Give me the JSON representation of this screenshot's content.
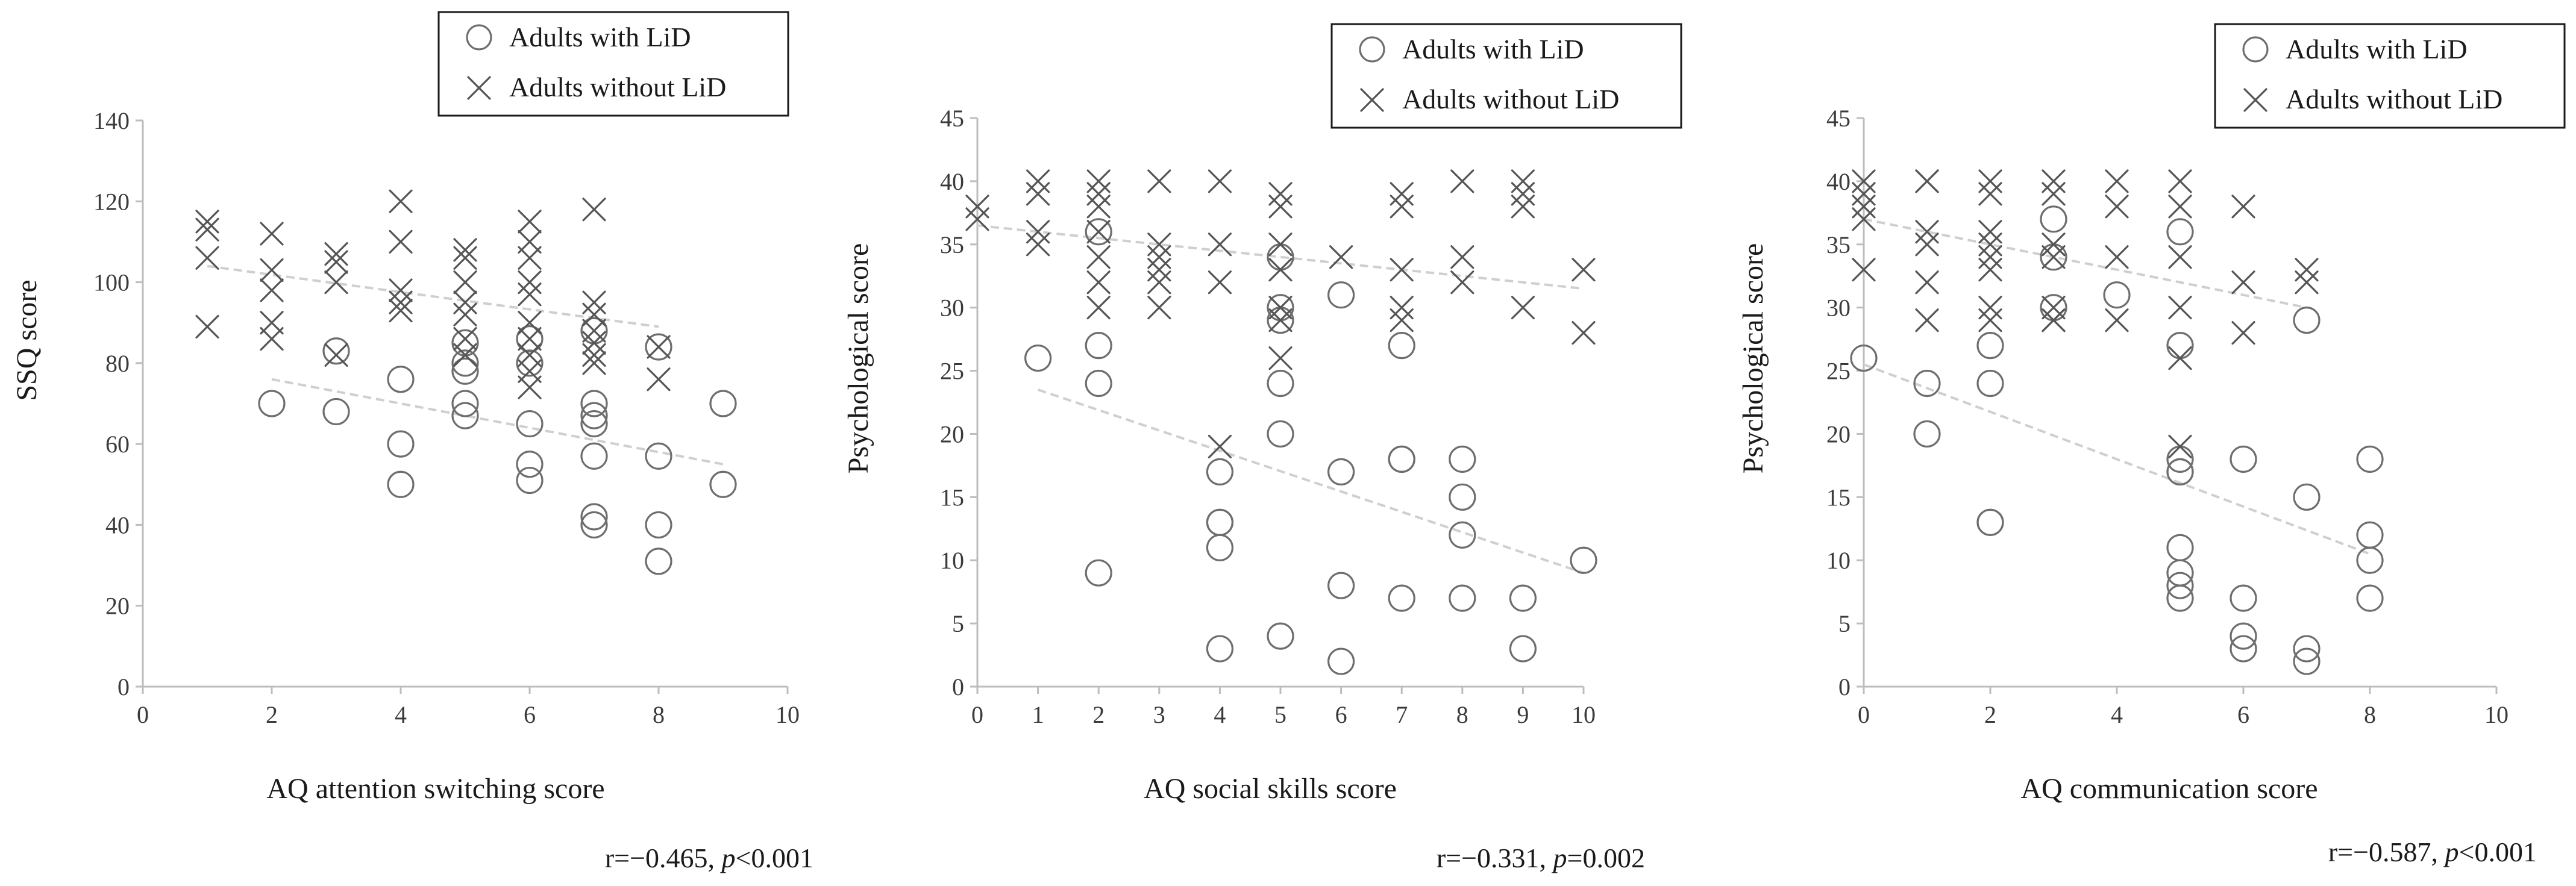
{
  "chart_data": [
    {
      "type": "scatter",
      "title": "",
      "xlabel": "AQ attention switching score",
      "ylabel": "SSQ score",
      "xlim": [
        0,
        10
      ],
      "ylim": [
        0,
        140
      ],
      "xticks": [
        0,
        2,
        4,
        6,
        8,
        10
      ],
      "yticks": [
        0,
        20,
        40,
        60,
        80,
        100,
        120,
        140
      ],
      "grid": false,
      "legend_position": "top-center",
      "correlation": {
        "r_text": "r=−0.465, ",
        "p_symbol": "p",
        "p_text": "<0.001"
      },
      "series": [
        {
          "name": "Adults with LiD",
          "marker": "circle",
          "x": [
            2,
            3,
            3,
            4,
            4,
            4,
            5,
            5,
            5,
            5,
            5,
            6,
            6,
            6,
            6,
            6,
            7,
            7,
            7,
            7,
            7,
            7,
            7,
            8,
            8,
            8,
            8,
            9,
            9
          ],
          "y": [
            70,
            68,
            83,
            76,
            60,
            50,
            67,
            70,
            78,
            80,
            85,
            65,
            55,
            51,
            80,
            86,
            70,
            67,
            65,
            57,
            42,
            40,
            88,
            84,
            57,
            40,
            31,
            70,
            50
          ],
          "trend": {
            "x": [
              2,
              9
            ],
            "y": [
              76,
              55
            ]
          }
        },
        {
          "name": "Adults without LiD",
          "marker": "cross",
          "x": [
            1,
            1,
            1,
            1,
            2,
            2,
            2,
            2,
            2,
            3,
            3,
            3,
            3,
            4,
            4,
            4,
            4,
            4,
            5,
            5,
            5,
            5,
            5,
            5,
            5,
            6,
            6,
            6,
            6,
            6,
            6,
            6,
            6,
            6,
            6,
            7,
            7,
            7,
            7,
            7,
            7,
            7,
            8,
            8
          ],
          "y": [
            115,
            113,
            106,
            89,
            112,
            103,
            98,
            90,
            86,
            107,
            105,
            100,
            82,
            120,
            110,
            98,
            95,
            93,
            108,
            106,
            100,
            95,
            92,
            86,
            82,
            115,
            110,
            106,
            100,
            97,
            90,
            86,
            82,
            78,
            74,
            118,
            95,
            92,
            88,
            85,
            82,
            80,
            84,
            76
          ],
          "trend": {
            "x": [
              1,
              8
            ],
            "y": [
              104,
              89
            ]
          }
        }
      ]
    },
    {
      "type": "scatter",
      "title": "",
      "xlabel": "AQ social skills score",
      "ylabel": "Psychological score",
      "xlim": [
        0,
        10
      ],
      "ylim": [
        0,
        45
      ],
      "xticks": [
        0,
        1,
        2,
        3,
        4,
        5,
        6,
        7,
        8,
        9,
        10
      ],
      "yticks": [
        0,
        5,
        10,
        15,
        20,
        25,
        30,
        35,
        40,
        45
      ],
      "grid": false,
      "legend_position": "top-right",
      "correlation": {
        "r_text": "r=−0.331, ",
        "p_symbol": "p",
        "p_text": "=0.002"
      },
      "series": [
        {
          "name": "Adults with LiD",
          "marker": "circle",
          "x": [
            1,
            2,
            2,
            2,
            2,
            4,
            4,
            4,
            4,
            4,
            5,
            5,
            5,
            5,
            5,
            5,
            6,
            6,
            6,
            6,
            7,
            7,
            7,
            7,
            8,
            8,
            8,
            8,
            9,
            9,
            10
          ],
          "y": [
            26,
            36,
            27,
            24,
            9,
            17,
            13,
            13,
            11,
            3,
            30,
            29,
            24,
            20,
            4,
            34,
            31,
            17,
            8,
            2,
            27,
            18,
            18,
            7,
            18,
            15,
            12,
            7,
            7,
            3,
            10
          ],
          "trend": {
            "x": [
              1,
              10
            ],
            "y": [
              23.5,
              9
            ]
          }
        },
        {
          "name": "Adults without LiD",
          "marker": "cross",
          "x": [
            0,
            0,
            1,
            1,
            1,
            1,
            2,
            2,
            2,
            2,
            2,
            2,
            2,
            3,
            3,
            3,
            3,
            3,
            3,
            4,
            4,
            4,
            4,
            5,
            5,
            5,
            5,
            5,
            5,
            5,
            6,
            7,
            7,
            7,
            7,
            7,
            8,
            8,
            8,
            9,
            9,
            9,
            9,
            10,
            10
          ],
          "y": [
            38,
            37,
            40,
            39,
            36,
            35,
            40,
            39,
            38,
            36,
            34,
            32,
            30,
            40,
            35,
            34,
            33,
            32,
            30,
            40,
            35,
            32,
            19,
            39,
            38,
            35,
            33,
            30,
            29,
            26,
            34,
            39,
            38,
            33,
            30,
            29,
            40,
            34,
            32,
            40,
            39,
            38,
            30,
            33,
            28
          ],
          "trend": {
            "x": [
              0,
              10
            ],
            "y": [
              36.5,
              31.5
            ]
          }
        }
      ]
    },
    {
      "type": "scatter",
      "title": "",
      "xlabel": "AQ communication score",
      "ylabel": "Psychological score",
      "xlim": [
        0,
        10
      ],
      "ylim": [
        0,
        45
      ],
      "xticks": [
        0,
        2,
        4,
        6,
        8,
        10
      ],
      "yticks": [
        0,
        5,
        10,
        15,
        20,
        25,
        30,
        35,
        40,
        45
      ],
      "grid": false,
      "legend_position": "top-right",
      "correlation": {
        "r_text": "r=−0.587, ",
        "p_symbol": "p",
        "p_text": "<0.001"
      },
      "series": [
        {
          "name": "Adults with LiD",
          "marker": "circle",
          "x": [
            0,
            1,
            1,
            2,
            2,
            2,
            2,
            3,
            3,
            3,
            4,
            5,
            5,
            5,
            5,
            5,
            5,
            5,
            5,
            5,
            6,
            6,
            6,
            6,
            7,
            7,
            7,
            7,
            8,
            8,
            8,
            8
          ],
          "y": [
            26,
            24,
            20,
            27,
            24,
            13,
            13,
            37,
            34,
            30,
            31,
            36,
            27,
            18,
            17,
            17,
            11,
            9,
            8,
            7,
            18,
            7,
            4,
            3,
            29,
            15,
            3,
            2,
            18,
            12,
            10,
            7
          ],
          "trend": {
            "x": [
              0,
              8
            ],
            "y": [
              25.5,
              10.5
            ]
          }
        },
        {
          "name": "Adults without LiD",
          "marker": "cross",
          "x": [
            0,
            0,
            0,
            0,
            0,
            1,
            1,
            1,
            1,
            1,
            1,
            2,
            2,
            2,
            2,
            2,
            2,
            2,
            2,
            3,
            3,
            3,
            3,
            3,
            3,
            3,
            4,
            4,
            4,
            4,
            5,
            5,
            5,
            5,
            5,
            5,
            6,
            6,
            6,
            7,
            7
          ],
          "y": [
            40,
            39,
            38,
            37,
            33,
            40,
            40,
            36,
            35,
            32,
            29,
            40,
            39,
            36,
            35,
            34,
            33,
            30,
            29,
            40,
            39,
            35,
            34,
            30,
            29,
            29,
            40,
            38,
            34,
            29,
            40,
            38,
            34,
            30,
            26,
            19,
            38,
            32,
            28,
            33,
            32
          ],
          "trend": {
            "x": [
              0,
              7
            ],
            "y": [
              37,
              30
            ]
          }
        }
      ]
    }
  ]
}
